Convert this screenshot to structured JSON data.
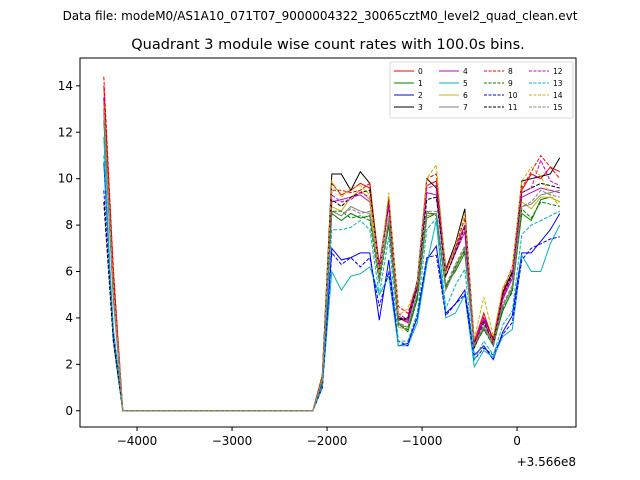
{
  "header": {
    "data_file": "Data file: modeM0/AS1A10_071T07_9000004322_30065cztM0_level2_quad_clean.evt"
  },
  "chart_data": {
    "type": "line",
    "title": "Quadrant 3 module wise count rates with 100.0s bins.",
    "xlabel": "",
    "ylabel": "",
    "x_offset_text": "+3.566e8",
    "xlim": [
      -4600,
      620
    ],
    "ylim": [
      -0.7,
      15.2
    ],
    "x_ticks": [
      -4000,
      -3000,
      -2000,
      -1000,
      0
    ],
    "x_tick_labels": [
      "−4000",
      "−3000",
      "−2000",
      "−1000",
      "0"
    ],
    "y_ticks": [
      0,
      2,
      4,
      6,
      8,
      10,
      12,
      14
    ],
    "y_tick_labels": [
      "0",
      "2",
      "4",
      "6",
      "8",
      "10",
      "12",
      "14"
    ],
    "grid": false,
    "legend_position": "top-right",
    "x": [
      -4350,
      -4250,
      -4150,
      -2150,
      -2050,
      -1950,
      -1850,
      -1750,
      -1650,
      -1550,
      -1450,
      -1350,
      -1250,
      -1150,
      -1050,
      -950,
      -850,
      -750,
      -650,
      -550,
      -450,
      -350,
      -250,
      -150,
      -50,
      50,
      150,
      250,
      350,
      450
    ],
    "series": [
      {
        "name": "0",
        "color": "#ff0000",
        "style": "solid",
        "values": [
          14.0,
          6.0,
          0.0,
          0.0,
          1.5,
          9.8,
          9.3,
          9.5,
          9.8,
          9.6,
          6.3,
          9.0,
          4.0,
          3.8,
          5.5,
          9.7,
          9.9,
          6.0,
          7.0,
          8.0,
          3.0,
          4.2,
          3.0,
          5.0,
          6.0,
          9.5,
          10.2,
          10.0,
          10.5,
          10.3
        ]
      },
      {
        "name": "1",
        "color": "#008000",
        "style": "solid",
        "values": [
          12.5,
          5.0,
          0.0,
          0.0,
          1.2,
          8.5,
          8.2,
          8.5,
          8.3,
          8.4,
          5.8,
          8.0,
          3.8,
          3.4,
          4.8,
          8.3,
          8.5,
          5.4,
          6.0,
          6.8,
          2.8,
          3.5,
          2.9,
          4.3,
          5.2,
          8.5,
          8.2,
          9.1,
          9.2,
          9.0
        ]
      },
      {
        "name": "2",
        "color": "#0000ff",
        "style": "solid",
        "values": [
          10.7,
          3.5,
          0.0,
          0.0,
          1.0,
          7.0,
          6.5,
          6.6,
          6.8,
          6.8,
          3.9,
          6.5,
          2.8,
          2.9,
          4.0,
          6.5,
          7.1,
          4.2,
          4.6,
          5.2,
          2.4,
          2.8,
          2.2,
          3.4,
          4.1,
          6.8,
          6.8,
          7.3,
          7.8,
          8.5
        ]
      },
      {
        "name": "3",
        "color": "#000000",
        "style": "solid",
        "values": [
          13.5,
          5.5,
          0.0,
          0.0,
          1.5,
          10.2,
          10.2,
          9.5,
          10.3,
          9.8,
          6.0,
          9.1,
          3.9,
          4.0,
          5.6,
          10.0,
          9.6,
          6.1,
          7.2,
          8.7,
          2.9,
          4.0,
          3.1,
          5.1,
          6.0,
          9.9,
          10.0,
          10.1,
          10.2,
          10.9
        ]
      },
      {
        "name": "4",
        "color": "#c000c0",
        "style": "solid",
        "values": [
          13.5,
          5.2,
          0.0,
          0.0,
          1.4,
          9.0,
          9.1,
          9.2,
          9.3,
          9.0,
          6.2,
          8.8,
          4.1,
          3.8,
          5.3,
          9.4,
          9.3,
          5.8,
          6.8,
          7.7,
          2.8,
          3.9,
          2.8,
          4.8,
          5.7,
          9.2,
          9.4,
          9.6,
          9.5,
          9.4
        ]
      },
      {
        "name": "5",
        "color": "#00b4b4",
        "style": "solid",
        "values": [
          11.8,
          3.0,
          0.0,
          0.0,
          1.0,
          6.0,
          5.2,
          5.8,
          5.9,
          6.2,
          5.0,
          5.8,
          2.8,
          2.8,
          3.8,
          6.3,
          8.2,
          4.0,
          4.2,
          5.0,
          1.9,
          2.6,
          2.3,
          3.2,
          3.5,
          6.7,
          6.0,
          6.0,
          7.2,
          8.0
        ]
      },
      {
        "name": "6",
        "color": "#c8b400",
        "style": "solid",
        "values": [
          13.0,
          5.0,
          0.0,
          0.0,
          1.4,
          8.8,
          8.6,
          9.2,
          9.5,
          9.1,
          5.6,
          8.4,
          3.6,
          3.5,
          5.0,
          8.4,
          8.5,
          5.2,
          6.2,
          7.0,
          2.8,
          3.6,
          2.9,
          4.5,
          5.3,
          9.0,
          8.7,
          9.2,
          9.2,
          9.0
        ]
      },
      {
        "name": "7",
        "color": "#808080",
        "style": "solid",
        "values": [
          12.8,
          4.8,
          0.0,
          0.0,
          1.3,
          8.6,
          8.4,
          8.8,
          8.6,
          8.5,
          5.7,
          8.2,
          3.7,
          3.6,
          5.0,
          8.5,
          8.5,
          5.2,
          6.1,
          7.0,
          2.7,
          3.6,
          2.8,
          4.5,
          5.3,
          8.8,
          8.9,
          9.3,
          9.4,
          9.5
        ]
      },
      {
        "name": "8",
        "color": "#ff0000",
        "style": "dashed",
        "values": [
          14.4,
          6.2,
          0.0,
          0.0,
          1.5,
          9.5,
          9.5,
          9.4,
          9.5,
          9.8,
          6.1,
          9.2,
          4.5,
          4.2,
          5.4,
          10.0,
          10.2,
          6.1,
          7.0,
          8.3,
          2.8,
          4.2,
          3.0,
          5.2,
          6.2,
          9.6,
          10.3,
          11.0,
          10.5,
          10.0
        ]
      },
      {
        "name": "9",
        "color": "#008000",
        "style": "dashed",
        "values": [
          13.2,
          5.2,
          0.0,
          0.0,
          1.3,
          8.6,
          8.6,
          8.3,
          8.4,
          8.2,
          5.5,
          8.0,
          3.7,
          3.5,
          4.9,
          8.6,
          8.4,
          5.3,
          6.2,
          6.9,
          2.8,
          3.5,
          2.8,
          4.4,
          5.1,
          8.7,
          8.3,
          9.0,
          8.9,
          8.8
        ]
      },
      {
        "name": "10",
        "color": "#0000ff",
        "style": "dashed",
        "values": [
          9.5,
          3.2,
          0.0,
          0.0,
          1.0,
          6.8,
          6.3,
          6.6,
          6.2,
          6.6,
          4.5,
          6.0,
          3.0,
          2.8,
          4.2,
          6.6,
          6.7,
          4.1,
          4.6,
          5.0,
          2.2,
          2.7,
          2.4,
          3.3,
          3.8,
          6.5,
          7.0,
          7.2,
          7.4,
          7.5
        ]
      },
      {
        "name": "11",
        "color": "#000000",
        "style": "dashed",
        "values": [
          9.0,
          3.0,
          0.0,
          0.0,
          1.2,
          9.1,
          8.8,
          9.2,
          9.4,
          9.5,
          5.9,
          8.9,
          4.0,
          3.9,
          5.3,
          9.1,
          9.2,
          5.8,
          6.8,
          7.9,
          2.7,
          3.8,
          2.9,
          4.9,
          5.9,
          9.4,
          9.6,
          9.8,
          9.7,
          9.6
        ]
      },
      {
        "name": "12",
        "color": "#d000d0",
        "style": "dashed",
        "values": [
          13.0,
          5.5,
          0.0,
          0.0,
          1.4,
          9.3,
          9.0,
          9.1,
          9.4,
          9.2,
          6.2,
          8.9,
          4.2,
          3.9,
          5.5,
          9.6,
          9.7,
          6.0,
          6.9,
          8.0,
          3.0,
          4.0,
          2.9,
          4.9,
          5.8,
          9.4,
          9.6,
          10.8,
          9.9,
          9.7
        ]
      },
      {
        "name": "13",
        "color": "#00b4b4",
        "style": "dashed",
        "values": [
          11.0,
          3.5,
          0.0,
          0.0,
          1.1,
          7.8,
          7.8,
          7.9,
          8.2,
          7.8,
          5.0,
          7.5,
          3.0,
          3.0,
          4.2,
          7.8,
          8.3,
          4.4,
          5.4,
          6.1,
          2.2,
          3.0,
          2.4,
          3.7,
          4.3,
          7.6,
          8.0,
          8.2,
          8.4,
          8.6
        ]
      },
      {
        "name": "14",
        "color": "#c8b400",
        "style": "dashed",
        "values": [
          13.2,
          5.4,
          0.0,
          0.0,
          1.4,
          9.9,
          9.2,
          9.6,
          9.7,
          9.3,
          5.9,
          9.4,
          4.1,
          4.4,
          5.5,
          10.0,
          10.6,
          5.9,
          7.1,
          8.5,
          3.1,
          4.9,
          3.2,
          5.3,
          6.1,
          9.9,
          10.5,
          10.1,
          9.3,
          8.8
        ]
      },
      {
        "name": "15",
        "color": "#808080",
        "style": "dashed",
        "values": [
          12.9,
          5.0,
          0.0,
          0.0,
          1.3,
          8.6,
          8.4,
          8.7,
          8.5,
          8.6,
          5.6,
          8.3,
          3.8,
          3.6,
          5.1,
          8.6,
          8.6,
          5.4,
          6.3,
          7.1,
          2.8,
          3.7,
          2.9,
          4.6,
          5.4,
          8.8,
          9.0,
          9.5,
          9.3,
          9.2
        ]
      }
    ]
  }
}
